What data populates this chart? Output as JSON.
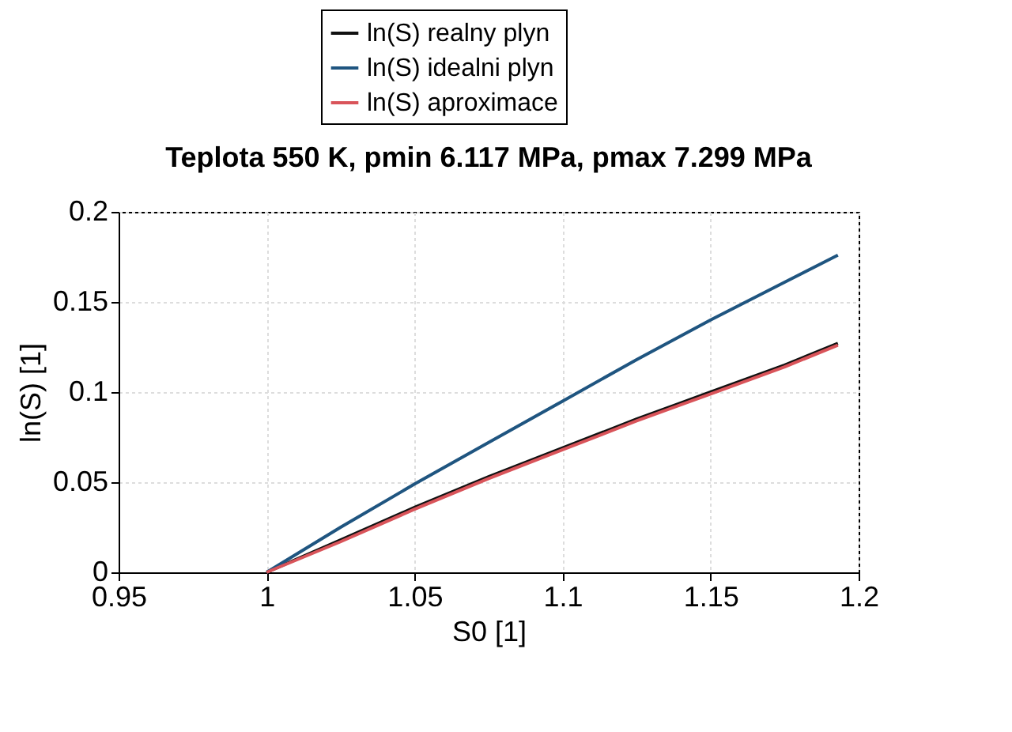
{
  "chart_data": {
    "type": "line",
    "title": "Teplota 550 K, pmin 6.117 MPa, pmax 7.299 MPa",
    "xlabel": "S0 [1]",
    "ylabel": "ln(S) [1]",
    "x": [
      1,
      1.025,
      1.05,
      1.075,
      1.1,
      1.125,
      1.15,
      1.175,
      1.193
    ],
    "series": [
      {
        "name": "ln(S) realny plyn",
        "color": "#111111",
        "values": [
          0,
          0.018,
          0.036,
          0.053,
          0.069,
          0.085,
          0.1,
          0.115,
          0.127
        ]
      },
      {
        "name": "ln(S) idealni plyn",
        "color": "#1f5580",
        "values": [
          0,
          0.025,
          0.049,
          0.072,
          0.095,
          0.118,
          0.14,
          0.161,
          0.176
        ]
      },
      {
        "name": "ln(S) aproximace",
        "color": "#d9545a",
        "values": [
          0,
          0.017,
          0.035,
          0.052,
          0.068,
          0.084,
          0.099,
          0.114,
          0.126
        ]
      }
    ],
    "xlim": [
      0.95,
      1.2
    ],
    "xticks": [
      0.95,
      1,
      1.05,
      1.1,
      1.15,
      1.2
    ],
    "ylim": [
      0,
      0.2
    ],
    "yticks": [
      0,
      0.05,
      0.1,
      0.15,
      0.2
    ],
    "grid": true,
    "legend": "top",
    "marker": "none",
    "line_style": "solid"
  }
}
